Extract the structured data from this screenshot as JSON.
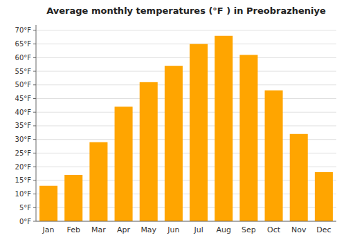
{
  "chart_data": {
    "type": "bar",
    "title": "Average monthly temperatures (°F ) in Preobrazheniye",
    "categories": [
      "Jan",
      "Feb",
      "Mar",
      "Apr",
      "May",
      "Jun",
      "Jul",
      "Aug",
      "Sep",
      "Oct",
      "Nov",
      "Dec"
    ],
    "values": [
      13,
      17,
      29,
      42,
      51,
      57,
      65,
      68,
      61,
      48,
      32,
      18
    ],
    "color": "#FFA500",
    "ylim": [
      0,
      72
    ],
    "yticks": [
      {
        "value": 0,
        "label": "0°F"
      },
      {
        "value": 5,
        "label": "5°F"
      },
      {
        "value": 10,
        "label": "10°F"
      },
      {
        "value": 15,
        "label": "15°F"
      },
      {
        "value": 20,
        "label": "20°F"
      },
      {
        "value": 25,
        "label": "25°F"
      },
      {
        "value": 30,
        "label": "30°F"
      },
      {
        "value": 35,
        "label": "35°F"
      },
      {
        "value": 40,
        "label": "40°F"
      },
      {
        "value": 45,
        "label": "45°F"
      },
      {
        "value": 50,
        "label": "50°F"
      },
      {
        "value": 55,
        "label": "55°F"
      },
      {
        "value": 60,
        "label": "60°F"
      },
      {
        "value": 65,
        "label": "65°F"
      },
      {
        "value": 70,
        "label": "70°F"
      }
    ],
    "grid": true
  }
}
